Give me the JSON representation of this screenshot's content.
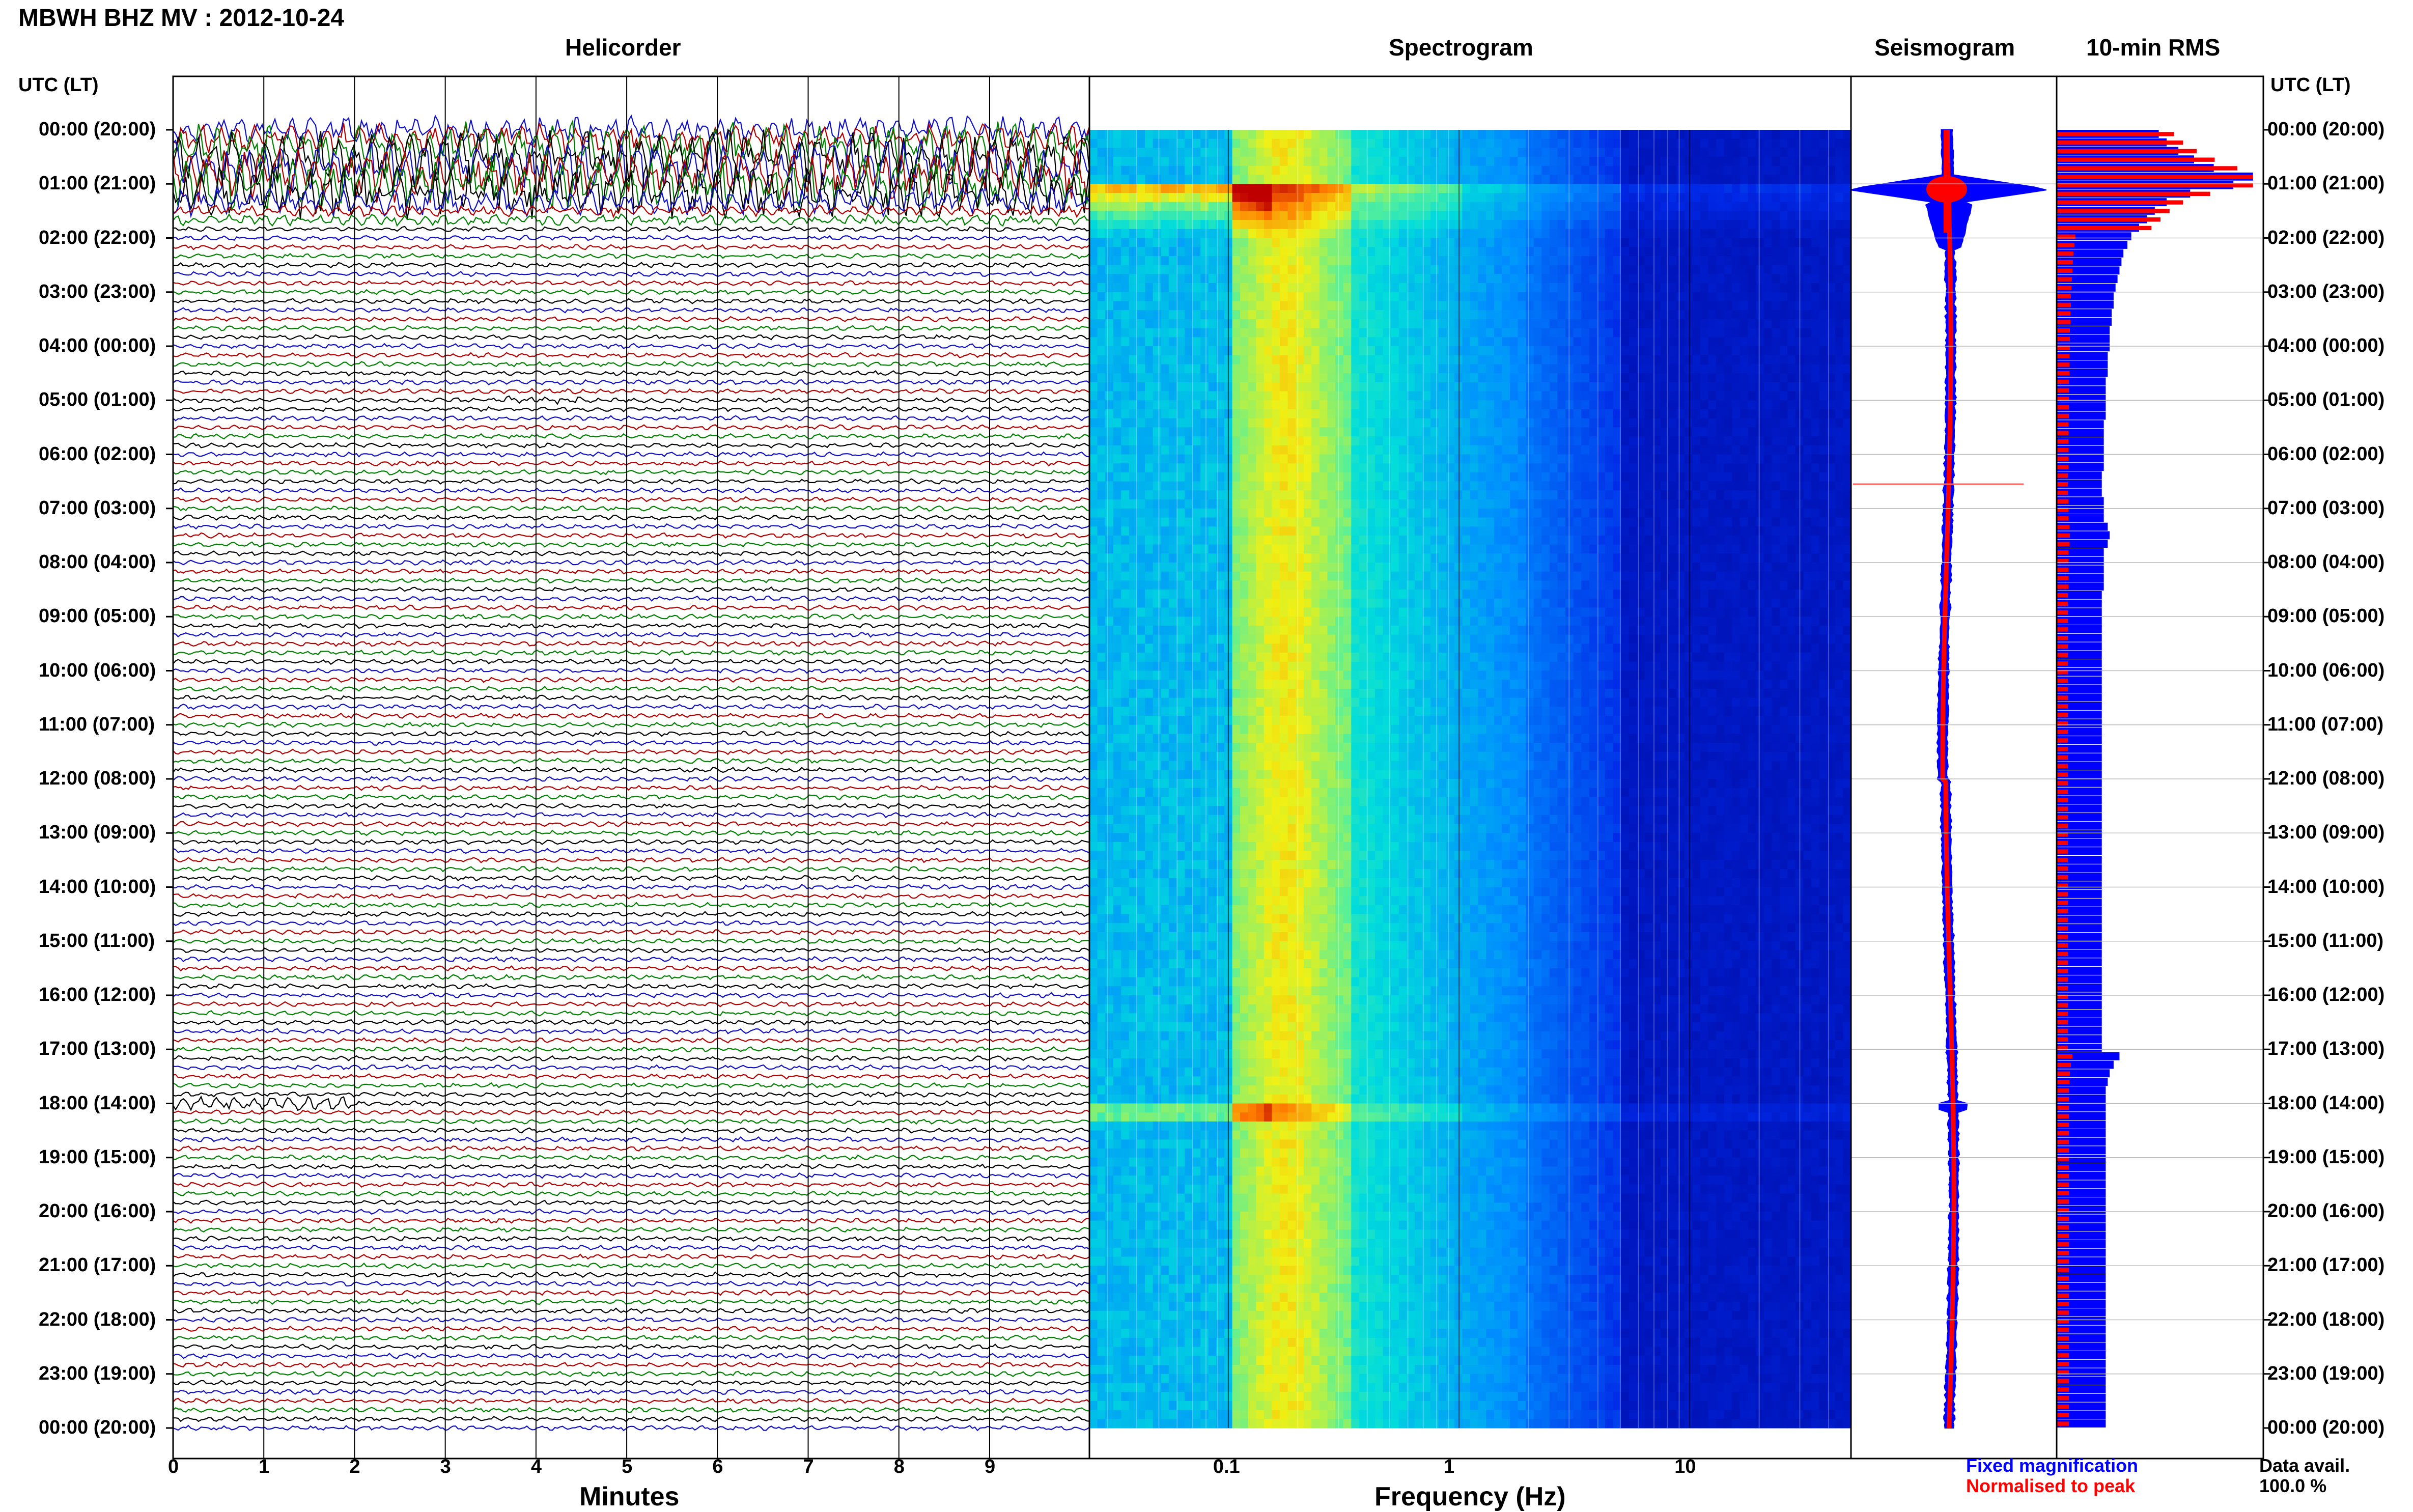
{
  "title": "MBWH BHZ MV : 2012-10-24",
  "panels": {
    "helicorder": "Helicorder",
    "spectrogram": "Spectrogram",
    "seismogram": "Seismogram",
    "rms": "10-min RMS"
  },
  "time_axis_header": "UTC (LT)",
  "time_labels": [
    "00:00 (20:00)",
    "01:00 (21:00)",
    "02:00 (22:00)",
    "03:00 (23:00)",
    "04:00 (00:00)",
    "05:00 (01:00)",
    "06:00 (02:00)",
    "07:00 (03:00)",
    "08:00 (04:00)",
    "09:00 (05:00)",
    "10:00 (06:00)",
    "11:00 (07:00)",
    "12:00 (08:00)",
    "13:00 (09:00)",
    "14:00 (10:00)",
    "15:00 (11:00)",
    "16:00 (12:00)",
    "17:00 (13:00)",
    "18:00 (14:00)",
    "19:00 (15:00)",
    "20:00 (16:00)",
    "21:00 (17:00)",
    "22:00 (18:00)",
    "23:00 (19:00)",
    "00:00 (20:00)"
  ],
  "minute_ticks": [
    "0",
    "1",
    "2",
    "3",
    "4",
    "5",
    "6",
    "7",
    "8",
    "9"
  ],
  "freq_ticks": [
    "0.1",
    "1",
    "10"
  ],
  "xlabel_minutes": "Minutes",
  "xlabel_freq": "Frequency (Hz)",
  "legend": {
    "fixed": "Fixed magnification",
    "normalised": "Normalised to peak",
    "avail_label": "Data avail.",
    "avail_value": "100.0 %"
  },
  "colors": {
    "trace_cycle": [
      "#1010c0",
      "#b00000",
      "#008000",
      "#000000"
    ],
    "fixed": "#0000ff",
    "normalised": "#ff0000"
  },
  "chart_data": [
    {
      "type": "line",
      "panel": "helicorder",
      "xlabel": "Minutes",
      "xlim": [
        0,
        10
      ],
      "rows_per_hour": 6,
      "hours": 24,
      "events": [
        {
          "start_utc": "00:00",
          "end_utc": "01:50",
          "description_level": "high"
        },
        {
          "start_utc": "05:00",
          "end_utc": "05:10",
          "description_level": "small"
        },
        {
          "start_utc": "18:00",
          "end_utc": "18:10",
          "description_level": "moderate"
        }
      ]
    },
    {
      "type": "heatmap",
      "panel": "spectrogram",
      "xlabel": "Frequency (Hz)",
      "xscale": "log",
      "xlim": [
        0.025,
        50
      ],
      "xticks": [
        0.1,
        1,
        10
      ]
    },
    {
      "type": "line",
      "panel": "seismogram",
      "series": [
        {
          "name": "Fixed magnification",
          "color": "#0000ff"
        },
        {
          "name": "Normalised to peak",
          "color": "#ff0000"
        }
      ]
    },
    {
      "type": "bar",
      "panel": "rms",
      "orientation": "horizontal",
      "interval_minutes": 10,
      "fixed_relative": [
        0.52,
        0.56,
        0.62,
        0.7,
        0.8,
        1.0,
        0.9,
        0.68,
        0.56,
        0.5,
        0.46,
        0.42,
        0.38,
        0.36,
        0.34,
        0.33,
        0.32,
        0.31,
        0.3,
        0.29,
        0.29,
        0.28,
        0.28,
        0.27,
        0.27,
        0.27,
        0.26,
        0.26,
        0.26,
        0.25,
        0.25,
        0.25,
        0.25,
        0.25,
        0.24,
        0.24,
        0.24,
        0.24,
        0.24,
        0.24,
        0.23,
        0.23,
        0.23,
        0.24,
        0.24,
        0.24,
        0.26,
        0.27,
        0.26,
        0.24,
        0.24,
        0.24,
        0.24,
        0.24,
        0.23,
        0.23,
        0.23,
        0.23,
        0.23,
        0.23,
        0.23,
        0.23,
        0.23,
        0.23,
        0.23,
        0.23,
        0.23,
        0.23,
        0.23,
        0.23,
        0.23,
        0.23,
        0.23,
        0.23,
        0.23,
        0.23,
        0.23,
        0.23,
        0.23,
        0.23,
        0.23,
        0.23,
        0.23,
        0.23,
        0.23,
        0.23,
        0.23,
        0.23,
        0.23,
        0.23,
        0.23,
        0.23,
        0.23,
        0.23,
        0.23,
        0.23,
        0.23,
        0.23,
        0.23,
        0.23,
        0.23,
        0.23,
        0.23,
        0.23,
        0.23,
        0.23,
        0.23,
        0.23,
        0.32,
        0.29,
        0.27,
        0.26,
        0.25,
        0.25,
        0.25,
        0.25,
        0.25,
        0.25,
        0.25,
        0.25,
        0.25,
        0.25,
        0.25,
        0.25,
        0.25,
        0.25,
        0.25,
        0.25,
        0.25,
        0.25,
        0.25,
        0.25,
        0.25,
        0.25,
        0.25,
        0.25,
        0.25,
        0.25,
        0.25,
        0.25,
        0.25,
        0.25,
        0.25,
        0.25,
        0.25,
        0.25,
        0.25,
        0.25,
        0.25,
        0.25,
        0.25,
        0.25
      ]
    }
  ]
}
